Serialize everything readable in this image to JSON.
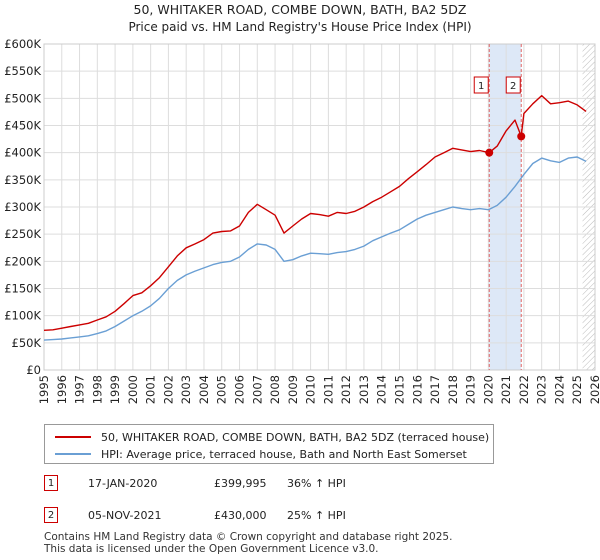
{
  "chart_data": {
    "type": "line",
    "title": "50, WHITAKER ROAD, COMBE DOWN, BATH, BA2 5DZ",
    "subtitle": "Price paid vs. HM Land Registry's House Price Index (HPI)",
    "xlim": [
      1995,
      2026
    ],
    "ylim": [
      0,
      600000
    ],
    "yticks": [
      0,
      50000,
      100000,
      150000,
      200000,
      250000,
      300000,
      350000,
      400000,
      450000,
      500000,
      550000,
      600000
    ],
    "ytick_labels": [
      "£0",
      "£50K",
      "£100K",
      "£150K",
      "£200K",
      "£250K",
      "£300K",
      "£350K",
      "£400K",
      "£450K",
      "£500K",
      "£550K",
      "£600K"
    ],
    "xticks": [
      "1995",
      "1996",
      "1997",
      "1998",
      "1999",
      "2000",
      "2001",
      "2002",
      "2003",
      "2004",
      "2005",
      "2006",
      "2007",
      "2008",
      "2009",
      "2010",
      "2011",
      "2012",
      "2013",
      "2014",
      "2015",
      "2016",
      "2017",
      "2018",
      "2019",
      "2020",
      "2021",
      "2022",
      "2023",
      "2024",
      "2025",
      "2026"
    ],
    "grid": true,
    "colors": {
      "property": "#cc0000",
      "hpi": "#6a9fd4",
      "shade": "#dde8f7",
      "vline": "#e06666",
      "grid": "#dddddd"
    },
    "shaded_region": [
      2020.05,
      2021.85
    ],
    "hatch_from": 2025.3,
    "series": [
      {
        "name": "50, WHITAKER ROAD, COMBE DOWN, BATH, BA2 5DZ (terraced house)",
        "x": [
          1995.0,
          1995.5,
          1996.0,
          1996.5,
          1997.0,
          1997.5,
          1998.0,
          1998.5,
          1999.0,
          1999.5,
          2000.0,
          2000.5,
          2001.0,
          2001.5,
          2002.0,
          2002.5,
          2003.0,
          2003.5,
          2004.0,
          2004.5,
          2005.0,
          2005.5,
          2006.0,
          2006.5,
          2007.0,
          2007.5,
          2008.0,
          2008.5,
          2009.0,
          2009.5,
          2010.0,
          2010.5,
          2011.0,
          2011.5,
          2012.0,
          2012.5,
          2013.0,
          2013.5,
          2014.0,
          2014.5,
          2015.0,
          2015.5,
          2016.0,
          2016.5,
          2017.0,
          2017.5,
          2018.0,
          2018.5,
          2019.0,
          2019.5,
          2020.05,
          2020.5,
          2021.0,
          2021.5,
          2021.85,
          2022.0,
          2022.5,
          2023.0,
          2023.5,
          2024.0,
          2024.5,
          2025.0,
          2025.5
        ],
        "values": [
          73000,
          74000,
          77000,
          80000,
          83000,
          86000,
          92000,
          98000,
          108000,
          122000,
          137000,
          142000,
          155000,
          170000,
          190000,
          210000,
          225000,
          232000,
          240000,
          252000,
          255000,
          256000,
          265000,
          290000,
          305000,
          295000,
          285000,
          252000,
          265000,
          278000,
          288000,
          286000,
          283000,
          290000,
          288000,
          292000,
          300000,
          310000,
          318000,
          328000,
          338000,
          352000,
          365000,
          378000,
          392000,
          400000,
          408000,
          405000,
          402000,
          404000,
          399995,
          412000,
          440000,
          460000,
          430000,
          472000,
          490000,
          505000,
          490000,
          492000,
          495000,
          488000,
          476000
        ]
      },
      {
        "name": "HPI: Average price, terraced house, Bath and North East Somerset",
        "x": [
          1995.0,
          1995.5,
          1996.0,
          1996.5,
          1997.0,
          1997.5,
          1998.0,
          1998.5,
          1999.0,
          1999.5,
          2000.0,
          2000.5,
          2001.0,
          2001.5,
          2002.0,
          2002.5,
          2003.0,
          2003.5,
          2004.0,
          2004.5,
          2005.0,
          2005.5,
          2006.0,
          2006.5,
          2007.0,
          2007.5,
          2008.0,
          2008.5,
          2009.0,
          2009.5,
          2010.0,
          2010.5,
          2011.0,
          2011.5,
          2012.0,
          2012.5,
          2013.0,
          2013.5,
          2014.0,
          2014.5,
          2015.0,
          2015.5,
          2016.0,
          2016.5,
          2017.0,
          2017.5,
          2018.0,
          2018.5,
          2019.0,
          2019.5,
          2020.0,
          2020.5,
          2021.0,
          2021.5,
          2022.0,
          2022.5,
          2023.0,
          2023.5,
          2024.0,
          2024.5,
          2025.0,
          2025.5
        ],
        "values": [
          55000,
          56000,
          57000,
          59000,
          61000,
          63000,
          67000,
          72000,
          80000,
          90000,
          100000,
          108000,
          118000,
          132000,
          150000,
          165000,
          175000,
          182000,
          188000,
          194000,
          198000,
          200000,
          208000,
          222000,
          232000,
          230000,
          222000,
          200000,
          203000,
          210000,
          215000,
          214000,
          213000,
          216000,
          218000,
          222000,
          228000,
          238000,
          245000,
          252000,
          258000,
          268000,
          278000,
          285000,
          290000,
          295000,
          300000,
          297000,
          295000,
          297000,
          295000,
          303000,
          318000,
          338000,
          360000,
          380000,
          390000,
          385000,
          382000,
          390000,
          392000,
          384000
        ]
      }
    ],
    "markers": [
      {
        "label": "1",
        "x": 2020.05,
        "y": 399995
      },
      {
        "label": "2",
        "x": 2021.85,
        "y": 430000
      }
    ]
  },
  "legend": {
    "property_label": "50, WHITAKER ROAD, COMBE DOWN, BATH, BA2 5DZ (terraced house)",
    "hpi_label": "HPI: Average price, terraced house, Bath and North East Somerset"
  },
  "sales": [
    {
      "num": "1",
      "date": "17-JAN-2020",
      "price": "£399,995",
      "hpi": "36% ↑ HPI"
    },
    {
      "num": "2",
      "date": "05-NOV-2021",
      "price": "£430,000",
      "hpi": "25% ↑ HPI"
    }
  ],
  "footer": {
    "line1": "Contains HM Land Registry data © Crown copyright and database right 2025.",
    "line2": "This data is licensed under the Open Government Licence v3.0."
  }
}
